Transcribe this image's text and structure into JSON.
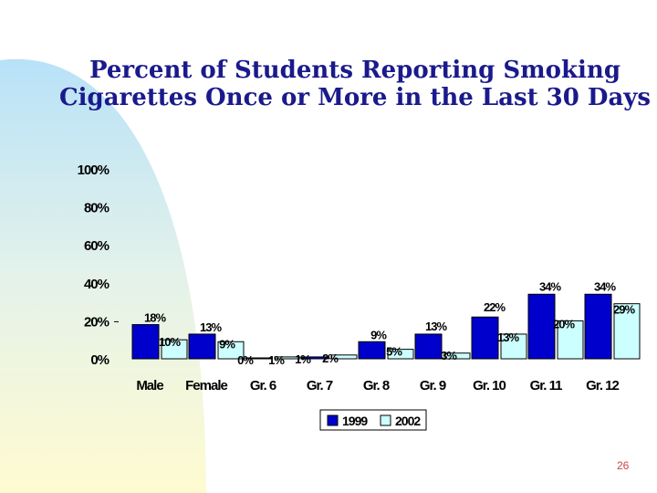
{
  "slide": {
    "title_line1": "Percent of Students Reporting Smoking",
    "title_line2": "Cigarettes Once or More in the Last 30 Days",
    "page_number": "26"
  },
  "colors": {
    "series_1999": "#0000cc",
    "series_2002": "#ccffff",
    "title": "#1a1a8c"
  },
  "chart_data": {
    "type": "bar",
    "title": "Percent of Students Reporting Smoking Cigarettes Once or More in the Last 30 Days",
    "categories": [
      "Male",
      "Female",
      "Gr. 6",
      "Gr. 7",
      "Gr. 8",
      "Gr. 9",
      "Gr. 10",
      "Gr. 11",
      "Gr. 12"
    ],
    "series": [
      {
        "name": "1999",
        "values": [
          18,
          13,
          0,
          1,
          9,
          13,
          22,
          34,
          34
        ],
        "labels": [
          "18%",
          "13%",
          "0%",
          "1%",
          "9%",
          "13%",
          "22%",
          "34%",
          "34%"
        ]
      },
      {
        "name": "2002",
        "values": [
          10,
          9,
          1,
          2,
          5,
          3,
          13,
          20,
          29
        ],
        "labels": [
          "10%",
          "9%",
          "1%",
          "2%",
          "5%",
          "3%",
          "13%",
          "20%",
          "29%"
        ]
      }
    ],
    "yticks": [
      "0%",
      "20%",
      "40%",
      "60%",
      "80%",
      "100%"
    ],
    "ylim": [
      0,
      100
    ],
    "xlabel": "",
    "ylabel": "",
    "legend_position": "bottom"
  }
}
